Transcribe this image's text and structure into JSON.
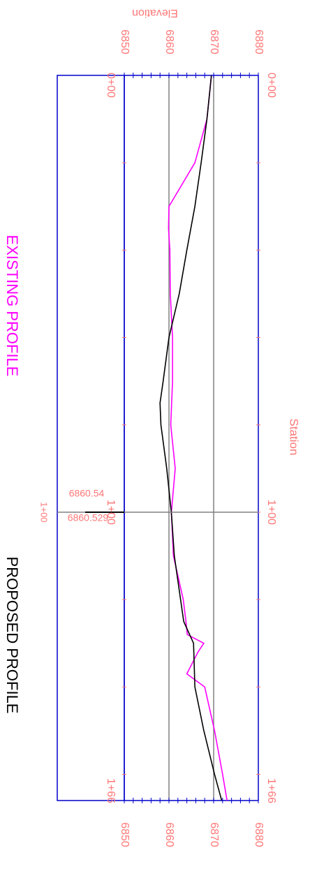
{
  "titles": {
    "existing_label": "EXISTING PROFILE",
    "proposed_label": "PROPOSED PROFILE"
  },
  "chart_data": {
    "type": "line",
    "orientation": "rotated-90-clockwise",
    "xlabel": "Station",
    "ylabel": "Elevation",
    "x_tick_labels": [
      "0+00",
      "1+00",
      "1+66"
    ],
    "y_tick_labels": [
      "6850",
      "6860",
      "6870",
      "6880"
    ],
    "xlim": [
      0,
      166
    ],
    "ylim": [
      6850,
      6880
    ],
    "grid_elevations": [
      6860,
      6870
    ],
    "marker": {
      "station": 100,
      "station_label": "1+00",
      "existing_value_label": "6860.54",
      "proposed_value_label": "6860.529"
    },
    "series": [
      {
        "name": "EXISTING PROFILE",
        "color": "#ff00ff",
        "x": [
          0,
          10,
          20,
          30,
          35,
          40,
          50,
          60,
          70,
          80,
          90,
          100,
          110,
          120,
          125,
          128,
          130,
          132,
          137,
          140,
          150,
          160,
          166
        ],
        "y": [
          6869.5,
          6868.5,
          6865.8,
          6860.0,
          6859.9,
          6860.2,
          6860.3,
          6860.8,
          6860.8,
          6860.4,
          6861.4,
          6860.54,
          6861.0,
          6863.2,
          6863.8,
          6864.1,
          6867.8,
          6866.5,
          6864.0,
          6868.0,
          6870.2,
          6872.0,
          6873.0
        ]
      },
      {
        "name": "PROPOSED PROFILE",
        "color": "#000000",
        "x": [
          0,
          10,
          20,
          30,
          40,
          50,
          60,
          70,
          75,
          80,
          90,
          100,
          110,
          120,
          125,
          130,
          140,
          150,
          160,
          166
        ],
        "y": [
          6869.5,
          6868.5,
          6867.2,
          6865.8,
          6864.0,
          6862.3,
          6860.0,
          6858.7,
          6858.0,
          6858.2,
          6859.5,
          6860.529,
          6861.2,
          6862.6,
          6863.3,
          6865.5,
          6865.8,
          6867.8,
          6870.2,
          6871.8
        ]
      }
    ]
  }
}
